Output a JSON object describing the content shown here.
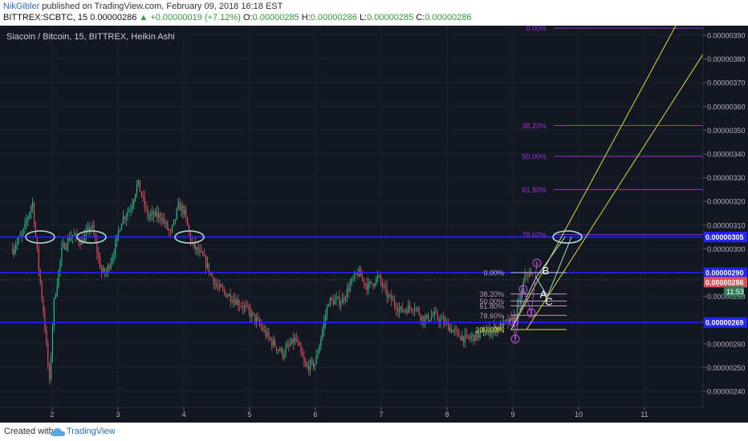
{
  "header": {
    "author": "NikGibler",
    "published": "published on TradingView.com, February 09, 2018 16:18 EST",
    "symbol": "BITTREX:SCBTC, 15",
    "last": "0.00000286",
    "change": "▲ +0.00000019 (+7.12%)",
    "ohlc": {
      "o_label": "O:",
      "o": "0.00000285",
      "h_label": "H:",
      "h": "0.00000286",
      "l_label": "L:",
      "l": "0.00000285",
      "c_label": "C:",
      "c": "0.00000286"
    }
  },
  "footer": {
    "created": "Created with",
    "brand": "TradingView"
  },
  "colors": {
    "background": "#131722",
    "up": "#2ebd85",
    "down": "#e0525b",
    "level": "#2424ff",
    "fib": "#9933cc",
    "channel": "#dada3c",
    "ellipse": "#a8d8cf",
    "wave": "#c05ad8"
  },
  "chart_data": {
    "type": "candlestick",
    "title": "Siacoin / Bitcoin, 15, BITTREX, Heikin Ashi",
    "x_ticks": [
      "2",
      "3",
      "4",
      "5",
      "6",
      "7",
      "8",
      "9",
      "10",
      "11"
    ],
    "y_ticks": [
      "0.00000240",
      "0.00000250",
      "0.00000260",
      "0.00000270",
      "0.00000280",
      "0.00000290",
      "0.00000300",
      "0.00000310",
      "0.00000320",
      "0.00000330",
      "0.00000340",
      "0.00000350",
      "0.00000360",
      "0.00000370",
      "0.00000380",
      "0.00000390"
    ],
    "ylim": [
      2.33e-06,
      3.97e-06
    ],
    "price_path": [
      [
        1.4,
        3e-06
      ],
      [
        1.55,
        3.06e-06
      ],
      [
        1.7,
        3.2e-06
      ],
      [
        1.78,
        2.96e-06
      ],
      [
        1.88,
        2.7e-06
      ],
      [
        1.96,
        2.43e-06
      ],
      [
        2.02,
        2.76e-06
      ],
      [
        2.15,
        3e-06
      ],
      [
        2.3,
        3.06e-06
      ],
      [
        2.45,
        3.03e-06
      ],
      [
        2.6,
        3.1e-06
      ],
      [
        2.75,
        2.9e-06
      ],
      [
        2.82,
        2.9e-06
      ],
      [
        2.95,
        3e-06
      ],
      [
        3.05,
        3.12e-06
      ],
      [
        3.2,
        3.18e-06
      ],
      [
        3.3,
        3.28e-06
      ],
      [
        3.45,
        3.14e-06
      ],
      [
        3.65,
        3.14e-06
      ],
      [
        3.8,
        3.06e-06
      ],
      [
        3.92,
        3.18e-06
      ],
      [
        4.0,
        3.16e-06
      ],
      [
        4.12,
        3.02e-06
      ],
      [
        4.3,
        2.96e-06
      ],
      [
        4.5,
        2.84e-06
      ],
      [
        4.7,
        2.8e-06
      ],
      [
        4.9,
        2.76e-06
      ],
      [
        5.1,
        2.7e-06
      ],
      [
        5.3,
        2.62e-06
      ],
      [
        5.5,
        2.56e-06
      ],
      [
        5.7,
        2.62e-06
      ],
      [
        5.85,
        2.5e-06
      ],
      [
        6.0,
        2.52e-06
      ],
      [
        6.2,
        2.78e-06
      ],
      [
        6.4,
        2.78e-06
      ],
      [
        6.55,
        2.86e-06
      ],
      [
        6.65,
        2.9e-06
      ],
      [
        6.8,
        2.84e-06
      ],
      [
        6.95,
        2.88e-06
      ],
      [
        7.1,
        2.8e-06
      ],
      [
        7.3,
        2.74e-06
      ],
      [
        7.5,
        2.76e-06
      ],
      [
        7.65,
        2.7e-06
      ],
      [
        7.8,
        2.72e-06
      ],
      [
        8.0,
        2.68e-06
      ],
      [
        8.15,
        2.64e-06
      ],
      [
        8.3,
        2.62e-06
      ],
      [
        8.5,
        2.64e-06
      ],
      [
        8.7,
        2.66e-06
      ],
      [
        8.85,
        2.68e-06
      ],
      [
        9.0,
        2.7e-06
      ],
      [
        9.1,
        2.78e-06
      ],
      [
        9.2,
        2.9e-06
      ],
      [
        9.3,
        2.88e-06
      ]
    ],
    "horizontal_levels": [
      3.05e-06,
      2.9e-06,
      2.69e-06
    ],
    "price_labels": [
      {
        "label": "0.00000305",
        "value": 3.05e-06,
        "kind": "level"
      },
      {
        "label": "0.00000290",
        "value": 2.9e-06,
        "kind": "level"
      },
      {
        "label": "0.00000286",
        "value": 2.86e-06,
        "kind": "last"
      },
      {
        "label": "0.00000269",
        "value": 2.69e-06,
        "kind": "level"
      }
    ],
    "countdown": "11:53",
    "fib_extension": [
      {
        "label": "0.00%",
        "value": 3.93e-06
      },
      {
        "label": "38.20%",
        "value": 3.52e-06
      },
      {
        "label": "50.00%",
        "value": 3.39e-06
      },
      {
        "label": "61.80%",
        "value": 3.25e-06
      },
      {
        "label": "78.60%",
        "value": 3.06e-06
      }
    ],
    "fib_retracement": [
      {
        "label": "0.00%",
        "value": 2.9e-06
      },
      {
        "label": "38.20%",
        "value": 2.81e-06
      },
      {
        "label": "50.00%",
        "value": 2.78e-06
      },
      {
        "label": "61.80%",
        "value": 2.76e-06
      },
      {
        "label": "78.60%",
        "value": 2.72e-06
      },
      {
        "label": "100.00%",
        "value": 2.66e-06
      }
    ],
    "wave_labels": [
      "1",
      "2",
      "3",
      "4",
      "5"
    ],
    "abc_labels": [
      "A",
      "B",
      "C"
    ]
  }
}
